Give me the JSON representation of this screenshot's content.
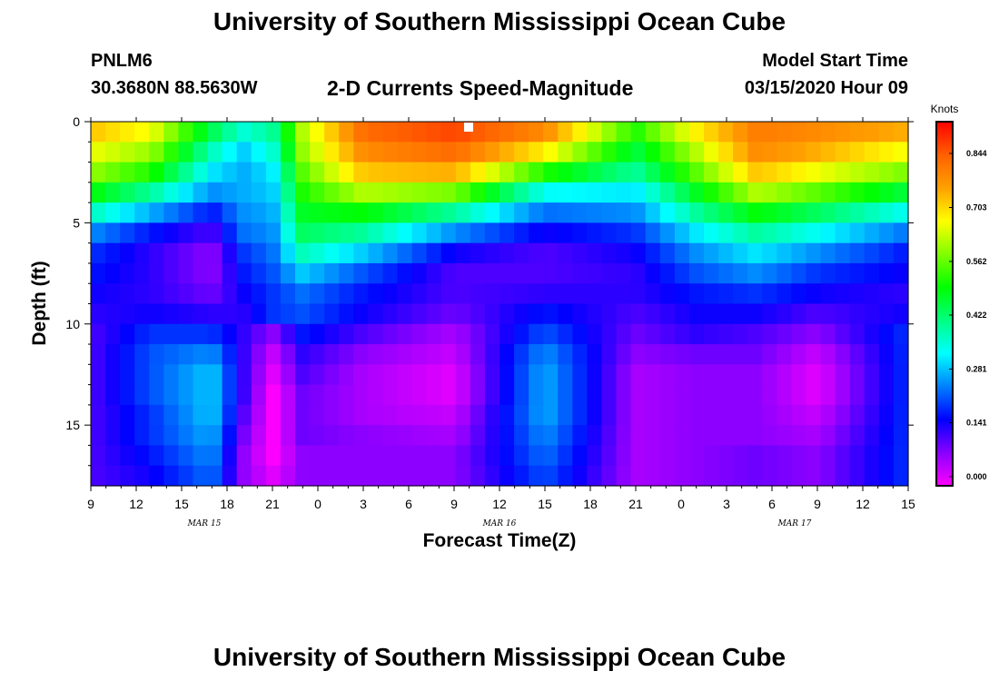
{
  "header": {
    "title": "University of Southern Mississippi Ocean Cube",
    "station": "PNLM6",
    "coords": "30.3680N 88.5630W",
    "subtitle": "2-D Currents Speed-Magnitude",
    "model_start_label": "Model Start Time",
    "model_start_value": "03/15/2020 Hour 09"
  },
  "footer": {
    "title": "University of Southern Mississippi Ocean Cube"
  },
  "chart_data": {
    "type": "heatmap",
    "title": "2-D Currents Speed-Magnitude",
    "xlabel": "Forecast Time(Z)",
    "ylabel": "Depth (ft)",
    "x_hours_range": [
      0,
      54
    ],
    "x_ticks": [
      "9",
      "12",
      "15",
      "18",
      "21",
      "0",
      "3",
      "6",
      "9",
      "12",
      "15",
      "18",
      "21",
      "0",
      "3",
      "6",
      "9",
      "12",
      "15"
    ],
    "date_labels": [
      "MAR 15",
      "MAR 16",
      "MAR 17"
    ],
    "date_label_hours": [
      7.5,
      27,
      46.5
    ],
    "y_ticks": [
      "0",
      "5",
      "10",
      "15"
    ],
    "ylim": [
      0,
      18
    ],
    "colorbar": {
      "unit": "Knots",
      "ticks": [
        "0.000",
        "0.141",
        "0.281",
        "0.422",
        "0.562",
        "0.703",
        "0.844"
      ],
      "range": [
        0,
        0.92
      ],
      "colors": [
        "#ff00ff",
        "#8800ff",
        "#0000ff",
        "#0080ff",
        "#00ffff",
        "#00ff80",
        "#00ff00",
        "#80ff00",
        "#ffff00",
        "#ffa000",
        "#ff6000",
        "#ff0000"
      ]
    },
    "depth_levels_ft": [
      0.5,
      1.5,
      2.5,
      3.5,
      4.5,
      5.5,
      6.5,
      7.5,
      8.5,
      9.5,
      10.5,
      11.5,
      12.5,
      13.5,
      14.5,
      15.5,
      16.5,
      17.5
    ],
    "time_hours": [
      0,
      4,
      8,
      10,
      12,
      14,
      18,
      24,
      30,
      36,
      40,
      44,
      48,
      54
    ],
    "speed_knots": [
      [
        0.72,
        0.66,
        0.45,
        0.36,
        0.4,
        0.62,
        0.82,
        0.86,
        0.78,
        0.52,
        0.68,
        0.8,
        0.78,
        0.74
      ],
      [
        0.66,
        0.6,
        0.38,
        0.3,
        0.36,
        0.6,
        0.78,
        0.82,
        0.68,
        0.46,
        0.62,
        0.78,
        0.74,
        0.66
      ],
      [
        0.6,
        0.52,
        0.32,
        0.28,
        0.32,
        0.56,
        0.72,
        0.74,
        0.52,
        0.4,
        0.56,
        0.72,
        0.66,
        0.58
      ],
      [
        0.5,
        0.4,
        0.26,
        0.28,
        0.3,
        0.52,
        0.62,
        0.58,
        0.34,
        0.32,
        0.48,
        0.62,
        0.56,
        0.46
      ],
      [
        0.38,
        0.28,
        0.18,
        0.26,
        0.28,
        0.48,
        0.5,
        0.4,
        0.24,
        0.26,
        0.4,
        0.5,
        0.44,
        0.34
      ],
      [
        0.26,
        0.18,
        0.12,
        0.24,
        0.26,
        0.44,
        0.4,
        0.26,
        0.16,
        0.2,
        0.32,
        0.4,
        0.34,
        0.24
      ],
      [
        0.2,
        0.14,
        0.08,
        0.2,
        0.24,
        0.38,
        0.3,
        0.16,
        0.12,
        0.16,
        0.26,
        0.32,
        0.26,
        0.18
      ],
      [
        0.18,
        0.14,
        0.08,
        0.18,
        0.22,
        0.3,
        0.22,
        0.12,
        0.12,
        0.14,
        0.22,
        0.26,
        0.2,
        0.16
      ],
      [
        0.16,
        0.14,
        0.1,
        0.16,
        0.2,
        0.24,
        0.18,
        0.12,
        0.14,
        0.14,
        0.18,
        0.2,
        0.16,
        0.14
      ],
      [
        0.14,
        0.16,
        0.14,
        0.14,
        0.2,
        0.22,
        0.16,
        0.1,
        0.18,
        0.12,
        0.16,
        0.16,
        0.12,
        0.16
      ],
      [
        0.12,
        0.2,
        0.2,
        0.14,
        0.08,
        0.18,
        0.12,
        0.06,
        0.22,
        0.1,
        0.14,
        0.12,
        0.08,
        0.2
      ],
      [
        0.12,
        0.22,
        0.26,
        0.14,
        0.04,
        0.14,
        0.08,
        0.04,
        0.26,
        0.08,
        0.1,
        0.1,
        0.04,
        0.2
      ],
      [
        0.12,
        0.22,
        0.3,
        0.14,
        0.02,
        0.12,
        0.06,
        0.02,
        0.28,
        0.06,
        0.08,
        0.08,
        0.02,
        0.2
      ],
      [
        0.12,
        0.22,
        0.3,
        0.14,
        0.0,
        0.1,
        0.06,
        0.02,
        0.28,
        0.06,
        0.08,
        0.08,
        0.02,
        0.2
      ],
      [
        0.12,
        0.2,
        0.3,
        0.12,
        0.0,
        0.1,
        0.06,
        0.04,
        0.28,
        0.06,
        0.08,
        0.08,
        0.04,
        0.2
      ],
      [
        0.12,
        0.2,
        0.28,
        0.1,
        0.0,
        0.1,
        0.08,
        0.06,
        0.26,
        0.06,
        0.08,
        0.08,
        0.06,
        0.2
      ],
      [
        0.12,
        0.18,
        0.26,
        0.08,
        0.0,
        0.08,
        0.08,
        0.08,
        0.24,
        0.06,
        0.08,
        0.1,
        0.08,
        0.2
      ],
      [
        0.12,
        0.16,
        0.24,
        0.08,
        0.02,
        0.08,
        0.08,
        0.08,
        0.22,
        0.06,
        0.08,
        0.1,
        0.08,
        0.2
      ]
    ],
    "grid": false,
    "legend": "right"
  }
}
